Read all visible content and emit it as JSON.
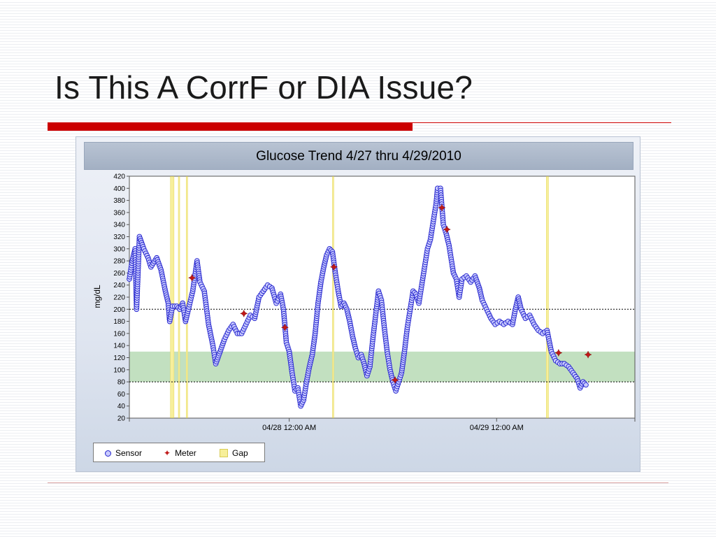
{
  "slide": {
    "title": "Is This A CorrF or DIA Issue?"
  },
  "colors": {
    "accent_rule": "#cc0000",
    "sensor_fill": "#c9cbff",
    "sensor_stroke": "#2222cc",
    "meter": "#c01818",
    "gap": "#f7ef9a",
    "target_band": "#c2e0c0"
  },
  "chart_data": {
    "type": "scatter",
    "title": "Glucose Trend 4/27 thru 4/29/2010",
    "xlabel": "",
    "ylabel": "mg/dL",
    "ylim": [
      20,
      420
    ],
    "yticks": [
      20,
      40,
      60,
      80,
      100,
      120,
      140,
      160,
      180,
      200,
      220,
      240,
      260,
      280,
      300,
      320,
      340,
      360,
      380,
      400,
      420
    ],
    "xlim": [
      "04/27 05:30 AM",
      "04/29 04:00 PM"
    ],
    "xticks": [
      {
        "time": "04/28 00:00",
        "label": "04/28 12:00 AM"
      },
      {
        "time": "04/29 00:00",
        "label": "04/29 12:00 AM"
      }
    ],
    "grid": false,
    "reference_lines": [
      80,
      200
    ],
    "target_range": [
      80,
      130
    ],
    "legend": [
      "Sensor",
      "Meter",
      "Gap"
    ],
    "legend_position": "bottom-left",
    "gaps": [
      {
        "start": "04/27 10:15 AM",
        "end": "04/27 10:40 AM"
      },
      {
        "start": "04/27 11:10 AM",
        "end": "04/27 11:15 AM"
      },
      {
        "start": "04/27 12:05 PM",
        "end": "04/27 12:10 PM"
      },
      {
        "start": "04/28 05:00 AM",
        "end": "04/28 05:05 AM"
      },
      {
        "start": "04/29 05:45 AM",
        "end": "04/29 06:00 AM"
      }
    ],
    "series": [
      {
        "name": "Sensor",
        "marker": "circle",
        "points": [
          [
            "04/27 05:30 AM",
            250
          ],
          [
            "04/27 05:50 AM",
            280
          ],
          [
            "04/27 06:10 AM",
            300
          ],
          [
            "04/27 06:20 AM",
            200
          ],
          [
            "04/27 06:40 AM",
            320
          ],
          [
            "04/27 07:10 AM",
            300
          ],
          [
            "04/27 07:40 AM",
            285
          ],
          [
            "04/27 08:00 AM",
            270
          ],
          [
            "04/27 08:40 AM",
            285
          ],
          [
            "04/27 09:10 AM",
            265
          ],
          [
            "04/27 09:40 AM",
            230
          ],
          [
            "04/27 10:00 AM",
            210
          ],
          [
            "04/27 10:10 AM",
            180
          ],
          [
            "04/27 10:30 AM",
            205
          ],
          [
            "04/27 11:00 AM",
            205
          ],
          [
            "04/27 11:20 AM",
            200
          ],
          [
            "04/27 11:40 AM",
            210
          ],
          [
            "04/27 12:00 PM",
            180
          ],
          [
            "04/27 12:20 PM",
            200
          ],
          [
            "04/27 12:50 PM",
            230
          ],
          [
            "04/27 01:20 PM",
            280
          ],
          [
            "04/27 01:40 PM",
            245
          ],
          [
            "04/27 02:10 PM",
            230
          ],
          [
            "04/27 02:40 PM",
            175
          ],
          [
            "04/27 03:10 PM",
            140
          ],
          [
            "04/27 03:30 PM",
            110
          ],
          [
            "04/27 04:00 PM",
            130
          ],
          [
            "04/27 04:30 PM",
            150
          ],
          [
            "04/27 05:00 PM",
            165
          ],
          [
            "04/27 05:30 PM",
            175
          ],
          [
            "04/27 06:00 PM",
            160
          ],
          [
            "04/27 06:30 PM",
            160
          ],
          [
            "04/27 07:00 PM",
            175
          ],
          [
            "04/27 07:30 PM",
            190
          ],
          [
            "04/27 08:00 PM",
            185
          ],
          [
            "04/27 08:30 PM",
            220
          ],
          [
            "04/27 09:00 PM",
            230
          ],
          [
            "04/27 09:30 PM",
            240
          ],
          [
            "04/27 10:00 PM",
            235
          ],
          [
            "04/27 10:30 PM",
            210
          ],
          [
            "04/27 11:00 PM",
            225
          ],
          [
            "04/27 11:20 PM",
            200
          ],
          [
            "04/27 11:40 PM",
            145
          ],
          [
            "04/28 12:00 AM",
            130
          ],
          [
            "04/28 12:20 AM",
            95
          ],
          [
            "04/28 12:40 AM",
            65
          ],
          [
            "04/28 01:00 AM",
            70
          ],
          [
            "04/28 01:20 AM",
            40
          ],
          [
            "04/28 01:40 AM",
            50
          ],
          [
            "04/28 02:00 AM",
            80
          ],
          [
            "04/28 02:20 AM",
            105
          ],
          [
            "04/28 02:40 AM",
            125
          ],
          [
            "04/28 03:00 AM",
            160
          ],
          [
            "04/28 03:20 AM",
            210
          ],
          [
            "04/28 03:40 AM",
            245
          ],
          [
            "04/28 04:00 AM",
            270
          ],
          [
            "04/28 04:20 AM",
            290
          ],
          [
            "04/28 04:40 AM",
            300
          ],
          [
            "04/28 05:00 AM",
            295
          ],
          [
            "04/28 05:20 AM",
            260
          ],
          [
            "04/28 05:40 AM",
            230
          ],
          [
            "04/28 06:00 AM",
            205
          ],
          [
            "04/28 06:20 AM",
            210
          ],
          [
            "04/28 06:40 AM",
            200
          ],
          [
            "04/28 07:00 AM",
            180
          ],
          [
            "04/28 07:20 AM",
            155
          ],
          [
            "04/28 07:40 AM",
            135
          ],
          [
            "04/28 08:00 AM",
            120
          ],
          [
            "04/28 08:20 AM",
            125
          ],
          [
            "04/28 08:40 AM",
            110
          ],
          [
            "04/28 09:00 AM",
            90
          ],
          [
            "04/28 09:20 AM",
            105
          ],
          [
            "04/28 09:40 AM",
            150
          ],
          [
            "04/28 10:00 AM",
            190
          ],
          [
            "04/28 10:20 AM",
            230
          ],
          [
            "04/28 10:40 AM",
            215
          ],
          [
            "04/28 11:00 AM",
            170
          ],
          [
            "04/28 11:20 AM",
            130
          ],
          [
            "04/28 11:40 AM",
            100
          ],
          [
            "04/28 12:00 PM",
            80
          ],
          [
            "04/28 12:20 PM",
            65
          ],
          [
            "04/28 12:40 PM",
            80
          ],
          [
            "04/28 01:00 PM",
            95
          ],
          [
            "04/28 01:20 PM",
            130
          ],
          [
            "04/28 01:40 PM",
            170
          ],
          [
            "04/28 02:00 PM",
            200
          ],
          [
            "04/28 02:20 PM",
            230
          ],
          [
            "04/28 02:40 PM",
            225
          ],
          [
            "04/28 03:00 PM",
            210
          ],
          [
            "04/28 03:20 PM",
            240
          ],
          [
            "04/28 03:40 PM",
            270
          ],
          [
            "04/28 04:00 PM",
            300
          ],
          [
            "04/28 04:20 PM",
            315
          ],
          [
            "04/28 04:40 PM",
            345
          ],
          [
            "04/28 05:00 PM",
            375
          ],
          [
            "04/28 05:10 PM",
            400
          ],
          [
            "04/28 05:30 PM",
            400
          ],
          [
            "04/28 05:50 PM",
            340
          ],
          [
            "04/28 06:10 PM",
            325
          ],
          [
            "04/28 06:30 PM",
            305
          ],
          [
            "04/28 07:00 PM",
            260
          ],
          [
            "04/28 07:20 PM",
            250
          ],
          [
            "04/28 07:40 PM",
            220
          ],
          [
            "04/28 08:00 PM",
            250
          ],
          [
            "04/28 08:30 PM",
            255
          ],
          [
            "04/28 09:00 PM",
            245
          ],
          [
            "04/28 09:30 PM",
            255
          ],
          [
            "04/28 10:00 PM",
            235
          ],
          [
            "04/28 10:20 PM",
            215
          ],
          [
            "04/28 10:50 PM",
            200
          ],
          [
            "04/28 11:20 PM",
            185
          ],
          [
            "04/28 11:50 PM",
            175
          ],
          [
            "04/29 12:20 AM",
            180
          ],
          [
            "04/29 12:50 AM",
            175
          ],
          [
            "04/29 01:20 AM",
            180
          ],
          [
            "04/29 01:50 AM",
            175
          ],
          [
            "04/29 02:10 AM",
            200
          ],
          [
            "04/29 02:30 AM",
            220
          ],
          [
            "04/29 02:50 AM",
            200
          ],
          [
            "04/29 03:20 AM",
            185
          ],
          [
            "04/29 03:50 AM",
            190
          ],
          [
            "04/29 04:20 AM",
            175
          ],
          [
            "04/29 04:50 AM",
            165
          ],
          [
            "04/29 05:20 AM",
            160
          ],
          [
            "04/29 05:50 AM",
            165
          ],
          [
            "04/29 06:20 AM",
            130
          ],
          [
            "04/29 06:50 AM",
            115
          ],
          [
            "04/29 07:20 AM",
            110
          ],
          [
            "04/29 07:50 AM",
            110
          ],
          [
            "04/29 08:20 AM",
            105
          ],
          [
            "04/29 08:50 AM",
            95
          ],
          [
            "04/29 09:20 AM",
            85
          ],
          [
            "04/29 09:40 AM",
            70
          ],
          [
            "04/29 10:00 AM",
            80
          ],
          [
            "04/29 10:20 AM",
            75
          ]
        ]
      },
      {
        "name": "Meter",
        "marker": "diamond",
        "points": [
          [
            "04/27 12:45 PM",
            252
          ],
          [
            "04/27 06:45 PM",
            193
          ],
          [
            "04/27 11:30 PM",
            170
          ],
          [
            "04/28 05:10 AM",
            270
          ],
          [
            "04/28 12:15 PM",
            83
          ],
          [
            "04/28 05:40 PM",
            368
          ],
          [
            "04/28 06:15 PM",
            332
          ],
          [
            "04/29 07:10 AM",
            128
          ],
          [
            "04/29 10:35 AM",
            125
          ]
        ]
      }
    ]
  }
}
